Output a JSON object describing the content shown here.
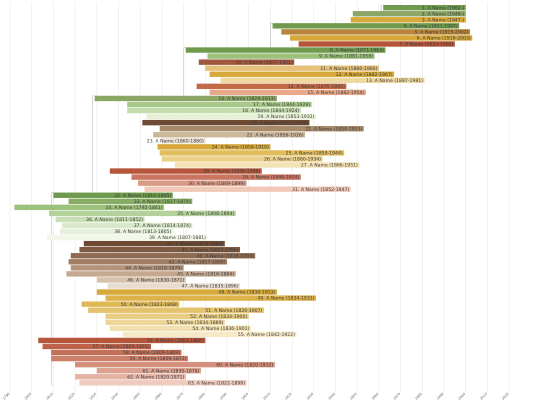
{
  "chart_data": {
    "type": "timeline",
    "title": "",
    "xlabel": "",
    "ylabel": "",
    "bars": [
      {
        "label": "1. A Name (1962-)",
        "start": 1962,
        "end": 2000,
        "color": "#6f9a4d"
      },
      {
        "label": "2. A Name (1948-)",
        "start": 1948,
        "end": 2000,
        "color": "#8ca765"
      },
      {
        "label": "3. A Name (1947-)",
        "start": 1947,
        "end": 2000,
        "color": "#d7a93a"
      },
      {
        "label": "4. A Name (1911-1997)",
        "start": 1911,
        "end": 1997,
        "color": "#6f9a4d"
      },
      {
        "label": "5. A Name (1915-2002)",
        "start": 1915,
        "end": 2002,
        "color": "#b8863a"
      },
      {
        "label": "6. A Name (1919-2003)",
        "start": 1919,
        "end": 2003,
        "color": "#d7a93a"
      },
      {
        "label": "7. A Name (1923-1995)",
        "start": 1923,
        "end": 1995,
        "color": "#b5563a"
      },
      {
        "label": "8. A Name (1871-1963)",
        "start": 1871,
        "end": 1963,
        "color": "#6f9a4d"
      },
      {
        "label": "9. A Name (1881-1958)",
        "start": 1881,
        "end": 1958,
        "color": "#9cc17a"
      },
      {
        "label": "10. A Name (1877-1921)",
        "start": 1877,
        "end": 1921,
        "color": "#a0583d"
      },
      {
        "label": "11. A Name (1880-1960)",
        "start": 1880,
        "end": 1960,
        "color": "#e5c07a"
      },
      {
        "label": "12. A Name (1882-1967)",
        "start": 1882,
        "end": 1967,
        "color": "#d7a93a"
      },
      {
        "label": "13. A Name (1887-1981)",
        "start": 1887,
        "end": 1981,
        "color": "#f0d9a0"
      },
      {
        "label": "14. A Name (1876-1945)",
        "start": 1876,
        "end": 1945,
        "color": "#c26a45"
      },
      {
        "label": "15. A Name (1882-1954)",
        "start": 1882,
        "end": 1954,
        "color": "#e8a88a"
      },
      {
        "label": "16. A Name (1829-1913)",
        "start": 1829,
        "end": 1913,
        "color": "#8ca765"
      },
      {
        "label": "17. A Name (1844-1929)",
        "start": 1844,
        "end": 1929,
        "color": "#a9c98a"
      },
      {
        "label": "18. A Name (1844-1924)",
        "start": 1844,
        "end": 1924,
        "color": "#c4dcae"
      },
      {
        "label": "19. A Name (1853-1931)",
        "start": 1853,
        "end": 1931,
        "color": "#e6f0d6"
      },
      {
        "label": "20. A Name (1851-1928)",
        "start": 1851,
        "end": 1928,
        "color": "#6e4a33"
      },
      {
        "label": "21. A Name (1859-1953)",
        "start": 1859,
        "end": 1953,
        "color": "#a78a6a"
      },
      {
        "label": "22. A Name (1856-1926)",
        "start": 1856,
        "end": 1926,
        "color": "#cdb79a"
      },
      {
        "label": "23. A Name (1860-1880)",
        "start": 1860,
        "end": 1880,
        "color": "#ece1d2"
      },
      {
        "label": "24. A Name (1858-1910)",
        "start": 1858,
        "end": 1910,
        "color": "#d7a93a"
      },
      {
        "label": "25. A Name (1859-1944)",
        "start": 1859,
        "end": 1944,
        "color": "#e1bd5e"
      },
      {
        "label": "26. A Name (1860-1934)",
        "start": 1860,
        "end": 1934,
        "color": "#ebd08a"
      },
      {
        "label": "27. A Name (1866-1951)",
        "start": 1866,
        "end": 1951,
        "color": "#f3e2b4"
      },
      {
        "label": "28. A Name (1836-1906)",
        "start": 1836,
        "end": 1906,
        "color": "#b5563a"
      },
      {
        "label": "29. A Name (1846-1924)",
        "start": 1846,
        "end": 1924,
        "color": "#c97560"
      },
      {
        "label": "30. A Name (1849-1899)",
        "start": 1849,
        "end": 1899,
        "color": "#d99a86"
      },
      {
        "label": "31. A Name (1852-1947)",
        "start": 1852,
        "end": 1947,
        "color": "#f0c9b8"
      },
      {
        "label": "32. A Name (1810-1865)",
        "start": 1810,
        "end": 1865,
        "color": "#6f9a4d"
      },
      {
        "label": "33. A Name (1817-1874)",
        "start": 1817,
        "end": 1874,
        "color": "#86ad63"
      },
      {
        "label": "34. A Name (1792-1861)",
        "start": 1792,
        "end": 1861,
        "color": "#9cc17a"
      },
      {
        "label": "35. A Name (1808-1894)",
        "start": 1808,
        "end": 1894,
        "color": "#b3d19a"
      },
      {
        "label": "36. A Name (1811-1852)",
        "start": 1811,
        "end": 1852,
        "color": "#c8deb4"
      },
      {
        "label": "37. A Name (1814-1874)",
        "start": 1814,
        "end": 1874,
        "color": "#d9e8cb"
      },
      {
        "label": "38. A Name (1813-1865)",
        "start": 1813,
        "end": 1865,
        "color": "#e6f0d9"
      },
      {
        "label": "39. A Name (1807-1881)",
        "start": 1807,
        "end": 1881,
        "color": "#f2f7ea"
      },
      {
        "label": "40. A Name (1824-1889)",
        "start": 1824,
        "end": 1889,
        "color": "#6e4a33"
      },
      {
        "label": "41. A Name (1822-1896)",
        "start": 1822,
        "end": 1896,
        "color": "#7e5a42"
      },
      {
        "label": "42. A Name (1818-1903)",
        "start": 1818,
        "end": 1903,
        "color": "#8f6b52"
      },
      {
        "label": "43. A Name (1817-1890)",
        "start": 1817,
        "end": 1890,
        "color": "#a17d64"
      },
      {
        "label": "44. A Name (1818-1870)",
        "start": 1818,
        "end": 1870,
        "color": "#b39379"
      },
      {
        "label": "45. A Name (1816-1894)",
        "start": 1816,
        "end": 1894,
        "color": "#c4a990"
      },
      {
        "label": "46. A Name (1830-1871)",
        "start": 1830,
        "end": 1871,
        "color": "#d6c1ab"
      },
      {
        "label": "47. A Name (1835-1896)",
        "start": 1835,
        "end": 1896,
        "color": "#e8dcce"
      },
      {
        "label": "48. A Name (1830-1913)",
        "start": 1830,
        "end": 1913,
        "color": "#d7a93a"
      },
      {
        "label": "49. A Name (1834-1931)",
        "start": 1834,
        "end": 1931,
        "color": "#ddb24a"
      },
      {
        "label": "50. A Name (1823-1868)",
        "start": 1823,
        "end": 1868,
        "color": "#e0b956"
      },
      {
        "label": "51. A Name (1826-1907)",
        "start": 1826,
        "end": 1907,
        "color": "#e5c36c"
      },
      {
        "label": "52. A Name (1834-1900)",
        "start": 1834,
        "end": 1900,
        "color": "#e9cd82"
      },
      {
        "label": "53. A Name (1834-1889)",
        "start": 1834,
        "end": 1889,
        "color": "#eed69a"
      },
      {
        "label": "54. A Name (1836-1901)",
        "start": 1836,
        "end": 1901,
        "color": "#f2dfb0"
      },
      {
        "label": "55. A Name (1842-1922)",
        "start": 1842,
        "end": 1922,
        "color": "#f6e9c8"
      },
      {
        "label": "56. A Name (1803-1880)",
        "start": 1803,
        "end": 1880,
        "color": "#b5563a"
      },
      {
        "label": "57. A Name (1805-1855)",
        "start": 1805,
        "end": 1855,
        "color": "#bb6249"
      },
      {
        "label": "58. A Name (1809-1869)",
        "start": 1809,
        "end": 1869,
        "color": "#c47059"
      },
      {
        "label": "59. A Name (1809-1872)",
        "start": 1809,
        "end": 1872,
        "color": "#cc7f6a"
      },
      {
        "label": "60. A Name (1820-1912)",
        "start": 1820,
        "end": 1912,
        "color": "#d4907c"
      },
      {
        "label": "61. A Name (1830-1878)",
        "start": 1830,
        "end": 1878,
        "color": "#dca190"
      },
      {
        "label": "62. A Name (1820-1871)",
        "start": 1820,
        "end": 1871,
        "color": "#e5b4a5"
      },
      {
        "label": "63. A Name (1822-1899)",
        "start": 1822,
        "end": 1899,
        "color": "#efcabd"
      }
    ],
    "ticks": [
      "1790",
      "1800",
      "1810",
      "1820",
      "1830",
      "1840",
      "1850",
      "1860",
      "1870",
      "1880",
      "1890",
      "1900",
      "1910",
      "1920",
      "1930",
      "1940",
      "1950",
      "1960",
      "1970",
      "1980",
      "1990",
      "2000",
      "2010",
      "2020"
    ]
  }
}
